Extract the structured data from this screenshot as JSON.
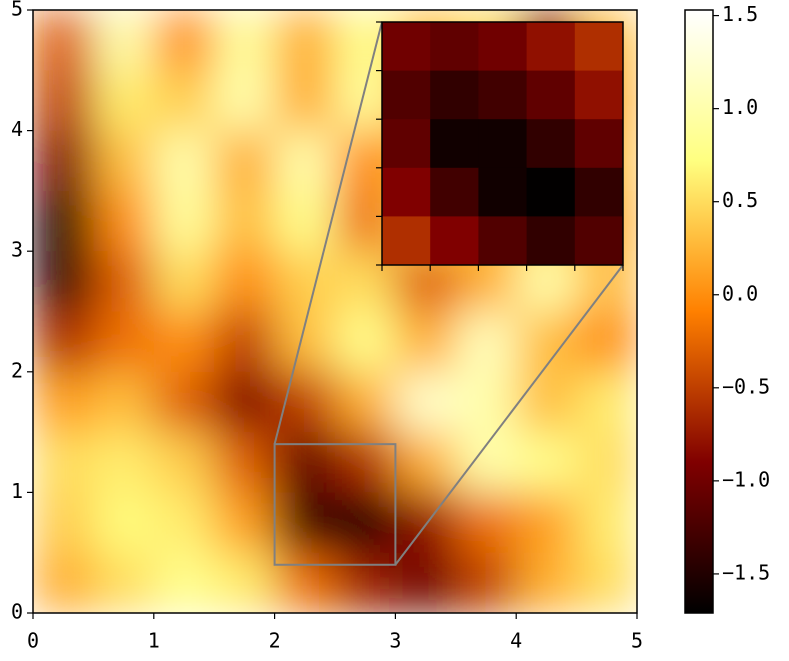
{
  "chart_data": {
    "type": "heatmap",
    "xlim": [
      0,
      5
    ],
    "ylim": [
      0,
      5
    ],
    "xticks": [
      0,
      1,
      2,
      3,
      4,
      5
    ],
    "yticks": [
      0,
      1,
      2,
      3,
      4,
      5
    ],
    "colormap": [
      "#000000",
      "#800000",
      "#ff8000",
      "#ffff80",
      "#ffffff"
    ],
    "values": [
      [
        -0.3,
        1.0,
        0.0,
        0.9,
        0.2,
        0.8,
        0.3,
        0.5,
        -0.8,
        0.3
      ],
      [
        -0.5,
        0.6,
        0.4,
        1.0,
        0.2,
        0.9,
        0.2,
        0.4,
        -0.2,
        0.2
      ],
      [
        -0.9,
        0.3,
        1.0,
        0.2,
        1.0,
        0.0,
        0.3,
        0.2,
        0.4,
        0.3
      ],
      [
        -1.5,
        0.0,
        0.9,
        0.3,
        0.8,
        -0.2,
        0.5,
        0.3,
        0.5,
        0.2
      ],
      [
        -1.4,
        -0.3,
        0.5,
        0.0,
        0.4,
        0.5,
        -0.3,
        0.2,
        1.0,
        0.3
      ],
      [
        -0.6,
        -0.2,
        0.0,
        -0.5,
        0.3,
        0.8,
        0.2,
        1.1,
        0.3,
        0.0
      ],
      [
        0.1,
        0.3,
        -0.3,
        -0.9,
        -0.5,
        0.2,
        1.2,
        1.0,
        0.3,
        0.6
      ],
      [
        0.5,
        0.6,
        0.4,
        -0.3,
        -1.1,
        -0.6,
        0.2,
        1.0,
        0.8,
        0.5
      ],
      [
        0.4,
        0.7,
        0.6,
        0.1,
        -1.3,
        -1.6,
        -0.8,
        -0.2,
        0.1,
        0.6
      ],
      [
        0.2,
        0.5,
        0.8,
        0.6,
        -0.2,
        -0.7,
        -1.0,
        -0.5,
        0.2,
        0.5
      ]
    ],
    "inset": {
      "xlim": [
        2,
        3
      ],
      "ylim": [
        0.4,
        1.4
      ],
      "xticks": [
        2,
        2.2,
        2.4,
        2.6,
        2.8,
        3
      ],
      "yticks": [
        0.4,
        0.6,
        0.8,
        1,
        1.2,
        1.4
      ],
      "indicator_color": "#808080",
      "values": [
        [
          -1.0,
          -1.1,
          -1.0,
          -0.8,
          -0.6
        ],
        [
          -1.2,
          -1.4,
          -1.3,
          -1.1,
          -0.8
        ],
        [
          -1.1,
          -1.6,
          -1.6,
          -1.4,
          -1.1
        ],
        [
          -0.9,
          -1.3,
          -1.6,
          -1.7,
          -1.4
        ],
        [
          -0.6,
          -0.9,
          -1.2,
          -1.4,
          -1.2
        ]
      ]
    },
    "colorbar": {
      "clim": [
        -1.71,
        1.53
      ],
      "ticks": [
        {
          "value": -1.5,
          "label": "−1.5"
        },
        {
          "value": -1,
          "label": "−1.0"
        },
        {
          "value": -0.5,
          "label": "−0.5"
        },
        {
          "value": 0,
          "label": "0.0"
        },
        0.5,
        {
          "value": 1,
          "label": "1.0"
        },
        1.5
      ]
    }
  }
}
